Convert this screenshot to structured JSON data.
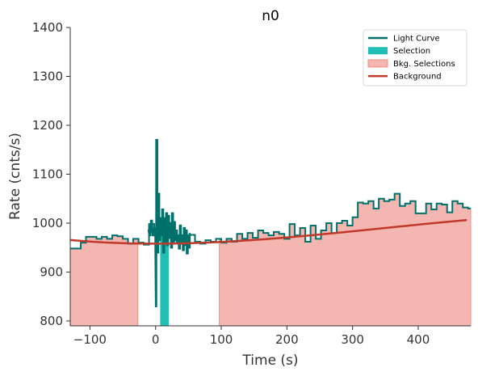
{
  "chart_data": {
    "type": "line",
    "title": "n0",
    "xlabel": "Time (s)",
    "ylabel": "Rate (cnts/s)",
    "xlim": [
      -130,
      480
    ],
    "ylim": [
      790,
      1400
    ],
    "xticks": [
      -100,
      0,
      100,
      200,
      300,
      400
    ],
    "yticks": [
      800,
      900,
      1000,
      1100,
      1200,
      1300,
      1400
    ],
    "grid": false,
    "legend_position": "top-right",
    "legend": [
      {
        "label": "Light Curve",
        "kind": "line",
        "color": "#00706b"
      },
      {
        "label": "Selection",
        "kind": "patch",
        "color": "#1fbfb5"
      },
      {
        "label": "Bkg. Selections",
        "kind": "patch",
        "color": "#f4b6b0"
      },
      {
        "label": "Background",
        "kind": "line",
        "color": "#c0392b"
      }
    ],
    "selection": {
      "x": [
        7,
        20
      ],
      "color": "#1fbfb5"
    },
    "bkg_selections": [
      {
        "x": [
          -130,
          -27
        ]
      },
      {
        "x": [
          97,
          480
        ]
      }
    ],
    "bkg_color": "#f4b6b0",
    "background_poly": {
      "coeffs": [
        958.0,
        0.0,
        0.000395,
        -3.8e-07
      ],
      "center": 0,
      "color": "#c0392b"
    },
    "light_curve": {
      "color": "#00706b",
      "coarse_bin": 8,
      "coarse": [
        [
          -130,
          948
        ],
        [
          -122,
          948
        ],
        [
          -114,
          960
        ],
        [
          -106,
          972
        ],
        [
          -98,
          972
        ],
        [
          -90,
          968
        ],
        [
          -82,
          972
        ],
        [
          -74,
          968
        ],
        [
          -66,
          975
        ],
        [
          -58,
          973
        ],
        [
          -50,
          968
        ],
        [
          -42,
          958
        ],
        [
          -34,
          968
        ],
        [
          -26,
          960
        ],
        [
          -18,
          956
        ],
        [
          -10,
          998
        ],
        [
          -2,
          990
        ],
        [
          6,
          1010
        ],
        [
          52,
          976
        ],
        [
          60,
          962
        ],
        [
          68,
          958
        ],
        [
          76,
          965
        ],
        [
          84,
          962
        ],
        [
          92,
          968
        ],
        [
          100,
          960
        ],
        [
          108,
          968
        ],
        [
          116,
          962
        ],
        [
          124,
          978
        ],
        [
          132,
          968
        ],
        [
          140,
          980
        ],
        [
          148,
          970
        ],
        [
          156,
          985
        ],
        [
          164,
          980
        ],
        [
          172,
          975
        ],
        [
          180,
          982
        ],
        [
          188,
          978
        ],
        [
          196,
          968
        ],
        [
          204,
          998
        ],
        [
          212,
          975
        ],
        [
          220,
          990
        ],
        [
          228,
          962
        ],
        [
          236,
          995
        ],
        [
          244,
          968
        ],
        [
          252,
          985
        ],
        [
          260,
          1000
        ],
        [
          268,
          980
        ],
        [
          276,
          1000
        ],
        [
          284,
          1005
        ],
        [
          292,
          995
        ],
        [
          300,
          1012
        ],
        [
          308,
          1042
        ],
        [
          316,
          1040
        ],
        [
          324,
          1045
        ],
        [
          332,
          1030
        ],
        [
          340,
          1050
        ],
        [
          348,
          1045
        ],
        [
          356,
          1048
        ],
        [
          364,
          1060
        ],
        [
          372,
          1035
        ],
        [
          380,
          1040
        ],
        [
          388,
          1045
        ],
        [
          396,
          1020
        ],
        [
          404,
          1020
        ],
        [
          412,
          1040
        ],
        [
          420,
          1028
        ],
        [
          428,
          1040
        ],
        [
          436,
          1038
        ],
        [
          444,
          1022
        ],
        [
          452,
          1045
        ],
        [
          460,
          1040
        ],
        [
          468,
          1032
        ],
        [
          476,
          1030
        ]
      ],
      "fine_bin": 1.5,
      "fine": [
        [
          -12,
          985
        ],
        [
          -9.5,
          975
        ],
        [
          -7,
          1005
        ],
        [
          -4.5,
          975
        ],
        [
          -2,
          990
        ],
        [
          0.5,
          830
        ],
        [
          1,
          1170
        ],
        [
          2.5,
          940
        ],
        [
          4,
          1060
        ],
        [
          5.5,
          965
        ],
        [
          7,
          1010
        ],
        [
          8.5,
          975
        ],
        [
          10,
          1028
        ],
        [
          11.5,
          940
        ],
        [
          13,
          1010
        ],
        [
          14.5,
          960
        ],
        [
          16,
          1020
        ],
        [
          17.5,
          955
        ],
        [
          19,
          1015
        ],
        [
          20.5,
          970
        ],
        [
          22,
          1000
        ],
        [
          23.5,
          950
        ],
        [
          25,
          1020
        ],
        [
          26.5,
          958
        ],
        [
          28,
          1002
        ],
        [
          29.5,
          965
        ],
        [
          31,
          985
        ],
        [
          32.5,
          960
        ],
        [
          34,
          975
        ],
        [
          35.5,
          948
        ],
        [
          37,
          995
        ],
        [
          38.5,
          958
        ],
        [
          40,
          975
        ],
        [
          41.5,
          945
        ],
        [
          43,
          990
        ],
        [
          44.5,
          955
        ],
        [
          46,
          985
        ],
        [
          47.5,
          938
        ],
        [
          49,
          975
        ],
        [
          50.5,
          950
        ],
        [
          52,
          978
        ]
      ]
    }
  }
}
